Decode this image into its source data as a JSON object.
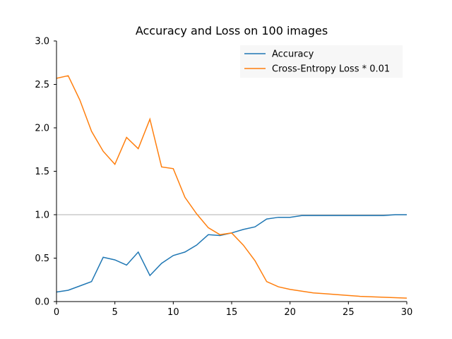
{
  "chart_data": {
    "type": "line",
    "title": "Accuracy and Loss on 100 images",
    "xlabel": "",
    "ylabel": "",
    "xlim": [
      0,
      30
    ],
    "ylim": [
      0,
      3.0
    ],
    "x_ticks": [
      0,
      5,
      10,
      15,
      20,
      25,
      30
    ],
    "y_ticks": [
      "0.0",
      "0.5",
      "1.0",
      "1.5",
      "2.0",
      "2.5",
      "3.0"
    ],
    "reference_line": 1.0,
    "legend_position": "top-right",
    "grid": false,
    "series": [
      {
        "name": "Accuracy",
        "color": "#1f77b4",
        "x": [
          0,
          1,
          2,
          3,
          4,
          5,
          6,
          7,
          8,
          9,
          10,
          11,
          12,
          13,
          14,
          15,
          16,
          17,
          18,
          19,
          20,
          21,
          22,
          23,
          24,
          25,
          26,
          27,
          28,
          29,
          30
        ],
        "values": [
          0.11,
          0.13,
          0.18,
          0.23,
          0.51,
          0.48,
          0.42,
          0.57,
          0.3,
          0.44,
          0.53,
          0.57,
          0.65,
          0.77,
          0.76,
          0.79,
          0.83,
          0.86,
          0.95,
          0.97,
          0.97,
          0.99,
          0.99,
          0.99,
          0.99,
          0.99,
          0.99,
          0.99,
          0.99,
          1.0,
          1.0
        ]
      },
      {
        "name": "Cross-Entropy Loss * 0.01",
        "color": "#ff7f0e",
        "x": [
          0,
          1,
          2,
          3,
          4,
          5,
          6,
          7,
          8,
          9,
          10,
          11,
          12,
          13,
          14,
          15,
          16,
          17,
          18,
          19,
          20,
          21,
          22,
          23,
          24,
          25,
          26,
          27,
          28,
          29,
          30
        ],
        "values": [
          2.57,
          2.6,
          2.32,
          1.96,
          1.73,
          1.58,
          1.89,
          1.76,
          2.1,
          1.55,
          1.53,
          1.2,
          1.01,
          0.85,
          0.77,
          0.79,
          0.65,
          0.47,
          0.23,
          0.17,
          0.14,
          0.12,
          0.1,
          0.09,
          0.08,
          0.07,
          0.06,
          0.055,
          0.05,
          0.045,
          0.04
        ]
      }
    ]
  }
}
